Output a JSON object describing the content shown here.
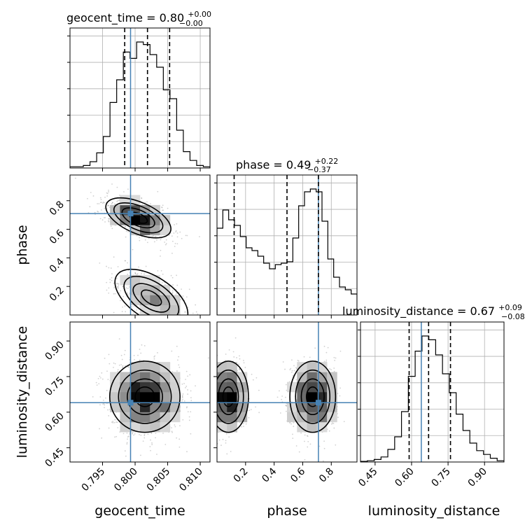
{
  "chart_data": {
    "type": "corner",
    "parameters": [
      {
        "name": "geocent_time",
        "xlabel": "geocent_time",
        "ylabel": "",
        "title_prefix": "geocent_time = 0.80",
        "title_sup": "+0.00",
        "title_sub": "−0.00",
        "range": [
          0.79,
          0.8115
        ],
        "truth": 0.7993,
        "quantiles": [
          0.7984,
          0.8019,
          0.8053
        ],
        "ticks": [
          0.795,
          0.8,
          0.805,
          0.81
        ],
        "tick_labels": [
          "0.795",
          "0.800",
          "0.805",
          "0.810"
        ],
        "hist": [
          1,
          1,
          2,
          5,
          12,
          25,
          52,
          70,
          92,
          87,
          100,
          98,
          90,
          80,
          62,
          55,
          30,
          13,
          6,
          2,
          1
        ]
      },
      {
        "name": "phase",
        "xlabel": "phase",
        "ylabel": "phase",
        "title_prefix": "phase = 0.49",
        "title_sup": "+0.22",
        "title_sub": "−0.37",
        "range": [
          0.0,
          0.98
        ],
        "truth": 0.71,
        "quantiles": [
          0.12,
          0.49,
          0.71
        ],
        "ticks": [
          0.2,
          0.4,
          0.6,
          0.8
        ],
        "tick_labels": [
          "0.2",
          "0.4",
          "0.6",
          "0.8"
        ],
        "hist": [
          62,
          75,
          68,
          64,
          56,
          48,
          46,
          42,
          37,
          33,
          36,
          37,
          38,
          55,
          78,
          88,
          90,
          88,
          67,
          40,
          27,
          20,
          18,
          15
        ]
      },
      {
        "name": "luminosity_distance",
        "xlabel": "luminosity_distance",
        "ylabel": "luminosity_distance",
        "title_prefix": "luminosity_distance = 0.67",
        "title_sup": "+0.09",
        "title_sub": "−0.08",
        "range": [
          0.39,
          0.98
        ],
        "truth": 0.64,
        "quantiles": [
          0.59,
          0.67,
          0.76
        ],
        "ticks": [
          0.45,
          0.6,
          0.75,
          0.9
        ],
        "tick_labels": [
          "0.45",
          "0.60",
          "0.75",
          "0.90"
        ],
        "hist": [
          0.5,
          1,
          2,
          4,
          10,
          20,
          40,
          68,
          88,
          100,
          97,
          85,
          70,
          55,
          38,
          25,
          15,
          9,
          6,
          3,
          1
        ]
      }
    ],
    "pairs": [
      {
        "x": "geocent_time",
        "y": "phase",
        "modes": [
          {
            "mx": 0.8005,
            "my": 0.68,
            "sx": 0.0025,
            "sy": 0.07,
            "rho": -0.55,
            "w": 0.6
          },
          {
            "mx": 0.8025,
            "my": 0.12,
            "sx": 0.0028,
            "sy": 0.1,
            "rho": -0.55,
            "w": 0.4
          }
        ]
      },
      {
        "x": "geocent_time",
        "y": "luminosity_distance",
        "modes": [
          {
            "mx": 0.8015,
            "my": 0.665,
            "sx": 0.0027,
            "sy": 0.075,
            "rho": 0.0,
            "w": 1.0
          }
        ]
      },
      {
        "x": "phase",
        "y": "luminosity_distance",
        "modes": [
          {
            "mx": 0.08,
            "my": 0.665,
            "sx": 0.07,
            "sy": 0.075,
            "rho": 0.0,
            "w": 0.45
          },
          {
            "mx": 0.67,
            "my": 0.665,
            "sx": 0.08,
            "sy": 0.075,
            "rho": 0.0,
            "w": 0.55
          }
        ]
      }
    ],
    "truth_color": "#4682b4",
    "hist_color": "#000000",
    "grid": true
  }
}
